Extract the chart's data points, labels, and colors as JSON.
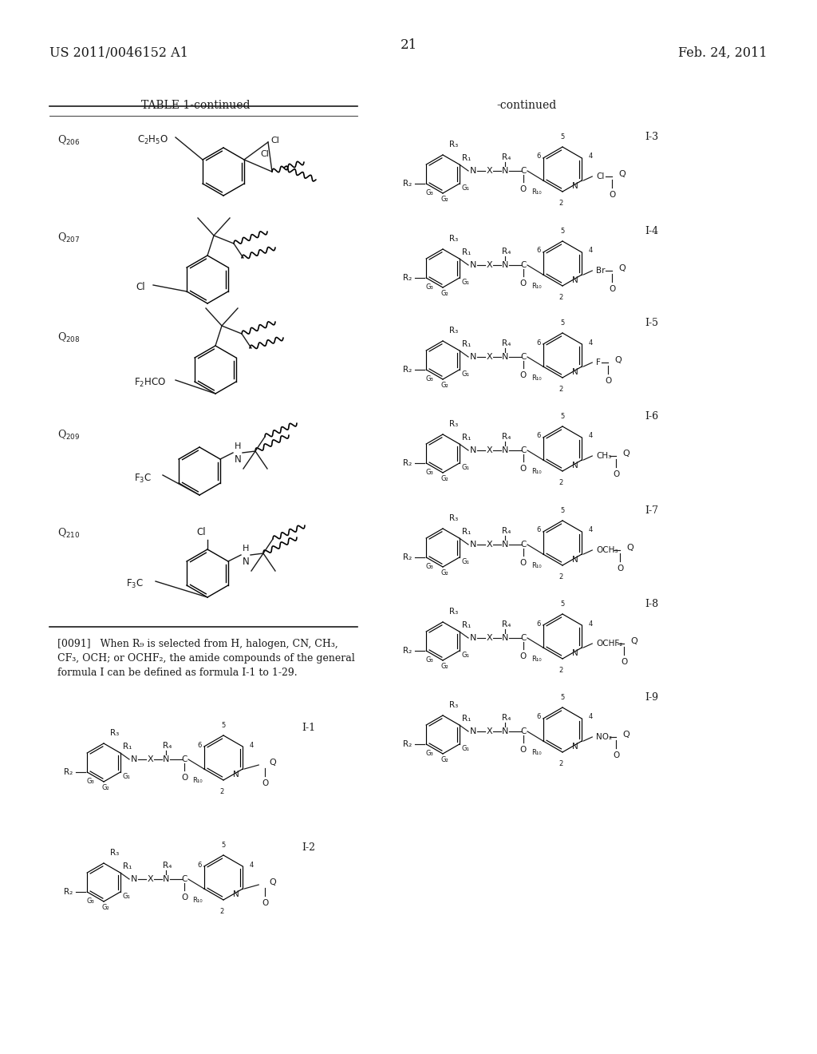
{
  "title_left": "US 2011/0046152 A1",
  "title_right": "Feb. 24, 2011",
  "page_number": "21",
  "background_color": "#ffffff",
  "text_color": "#1a1a1a",
  "table_title": "TABLE 1-continued",
  "continued_label": "-continued",
  "para_text": "[0091]   When R₉ is selected from H, halogen, CN, CH₃,\nCF₃, OCH; or OCHF₂, the amide compounds of the general\nformula I can be defined as formula I-1 to 1-29."
}
